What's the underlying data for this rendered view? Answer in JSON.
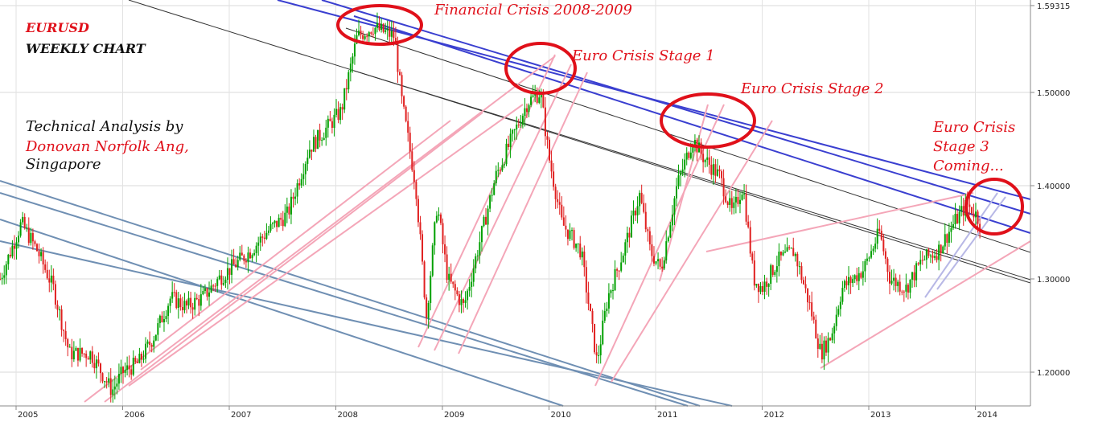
{
  "title_lines": {
    "symbol": "EURUSD",
    "period": "WEEKLY CHART"
  },
  "credit": {
    "line1": "Technical Analysis by",
    "line2": "Donovan Norfolk Ang,",
    "line3": "Singapore"
  },
  "annotations": {
    "crisis_2008": "Financial Crisis 2008-2009",
    "stage1": "Euro Crisis Stage 1",
    "stage2": "Euro Crisis Stage 2",
    "stage3_line1": "Euro Crisis",
    "stage3_line2": "Stage 3",
    "stage3_line3": "Coming..."
  },
  "colors": {
    "up_candle": "#00a000",
    "down_candle": "#e02020",
    "title_red": "#e0101a",
    "pink_channel": "#f4a6b8",
    "blue_channel": "#3a3fd0",
    "steel_channel": "#6f8fb3",
    "black_line": "#333333",
    "circle": "#e0101a"
  },
  "chart_data": {
    "type": "candlestick",
    "xlabel": "",
    "ylabel": "",
    "x_ticks": [
      "2005",
      "2006",
      "2007",
      "2008",
      "2009",
      "2010",
      "2011",
      "2012",
      "2013",
      "2014"
    ],
    "y_ticks": [
      "1.59315",
      "1.50000",
      "1.40000",
      "1.30000",
      "1.20000"
    ],
    "ylim": [
      1.15,
      1.6
    ],
    "xlim": [
      2004.85,
      2014.55
    ],
    "grid": true,
    "path_points": [
      [
        2004.85,
        1.3
      ],
      [
        2004.95,
        1.33
      ],
      [
        2005.05,
        1.36
      ],
      [
        2005.2,
        1.33
      ],
      [
        2005.35,
        1.29
      ],
      [
        2005.5,
        1.22
      ],
      [
        2005.7,
        1.22
      ],
      [
        2005.9,
        1.18
      ],
      [
        2006.0,
        1.2
      ],
      [
        2006.15,
        1.21
      ],
      [
        2006.3,
        1.24
      ],
      [
        2006.45,
        1.28
      ],
      [
        2006.6,
        1.27
      ],
      [
        2006.75,
        1.28
      ],
      [
        2006.9,
        1.3
      ],
      [
        2007.0,
        1.31
      ],
      [
        2007.2,
        1.33
      ],
      [
        2007.35,
        1.35
      ],
      [
        2007.55,
        1.37
      ],
      [
        2007.75,
        1.44
      ],
      [
        2007.9,
        1.46
      ],
      [
        2008.05,
        1.48
      ],
      [
        2008.2,
        1.56
      ],
      [
        2008.35,
        1.57
      ],
      [
        2008.55,
        1.56
      ],
      [
        2008.62,
        1.49
      ],
      [
        2008.75,
        1.4
      ],
      [
        2008.85,
        1.26
      ],
      [
        2008.95,
        1.38
      ],
      [
        2009.05,
        1.3
      ],
      [
        2009.2,
        1.27
      ],
      [
        2009.35,
        1.34
      ],
      [
        2009.5,
        1.41
      ],
      [
        2009.65,
        1.45
      ],
      [
        2009.8,
        1.49
      ],
      [
        2009.92,
        1.5
      ],
      [
        2010.0,
        1.43
      ],
      [
        2010.12,
        1.36
      ],
      [
        2010.3,
        1.33
      ],
      [
        2010.45,
        1.21
      ],
      [
        2010.55,
        1.28
      ],
      [
        2010.7,
        1.33
      ],
      [
        2010.85,
        1.39
      ],
      [
        2010.95,
        1.33
      ],
      [
        2011.05,
        1.31
      ],
      [
        2011.2,
        1.4
      ],
      [
        2011.35,
        1.45
      ],
      [
        2011.45,
        1.43
      ],
      [
        2011.6,
        1.41
      ],
      [
        2011.72,
        1.37
      ],
      [
        2011.82,
        1.4
      ],
      [
        2011.92,
        1.3
      ],
      [
        2012.0,
        1.29
      ],
      [
        2012.15,
        1.32
      ],
      [
        2012.3,
        1.33
      ],
      [
        2012.45,
        1.27
      ],
      [
        2012.55,
        1.22
      ],
      [
        2012.65,
        1.24
      ],
      [
        2012.75,
        1.29
      ],
      [
        2012.85,
        1.3
      ],
      [
        2012.95,
        1.31
      ],
      [
        2013.1,
        1.35
      ],
      [
        2013.2,
        1.3
      ],
      [
        2013.35,
        1.29
      ],
      [
        2013.5,
        1.32
      ],
      [
        2013.65,
        1.33
      ],
      [
        2013.8,
        1.36
      ],
      [
        2013.92,
        1.38
      ],
      [
        2014.0,
        1.37
      ],
      [
        2014.05,
        1.36
      ]
    ]
  }
}
